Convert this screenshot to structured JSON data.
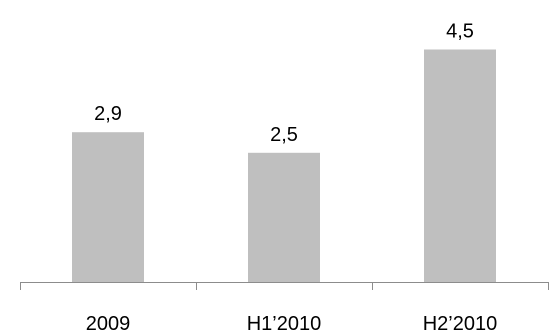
{
  "chart_data": {
    "type": "bar",
    "categories": [
      "2009",
      "H1’2010",
      "H2’2010"
    ],
    "values": [
      2.9,
      2.5,
      4.5
    ],
    "data_labels": [
      "2,9",
      "2,5",
      "4,5"
    ],
    "title": "",
    "xlabel": "",
    "ylabel": "",
    "ylim": [
      0,
      4.8
    ],
    "grid": false,
    "legend": "none",
    "bar_color": "#bfbfbf",
    "axis_color": "#8c8c8c"
  }
}
